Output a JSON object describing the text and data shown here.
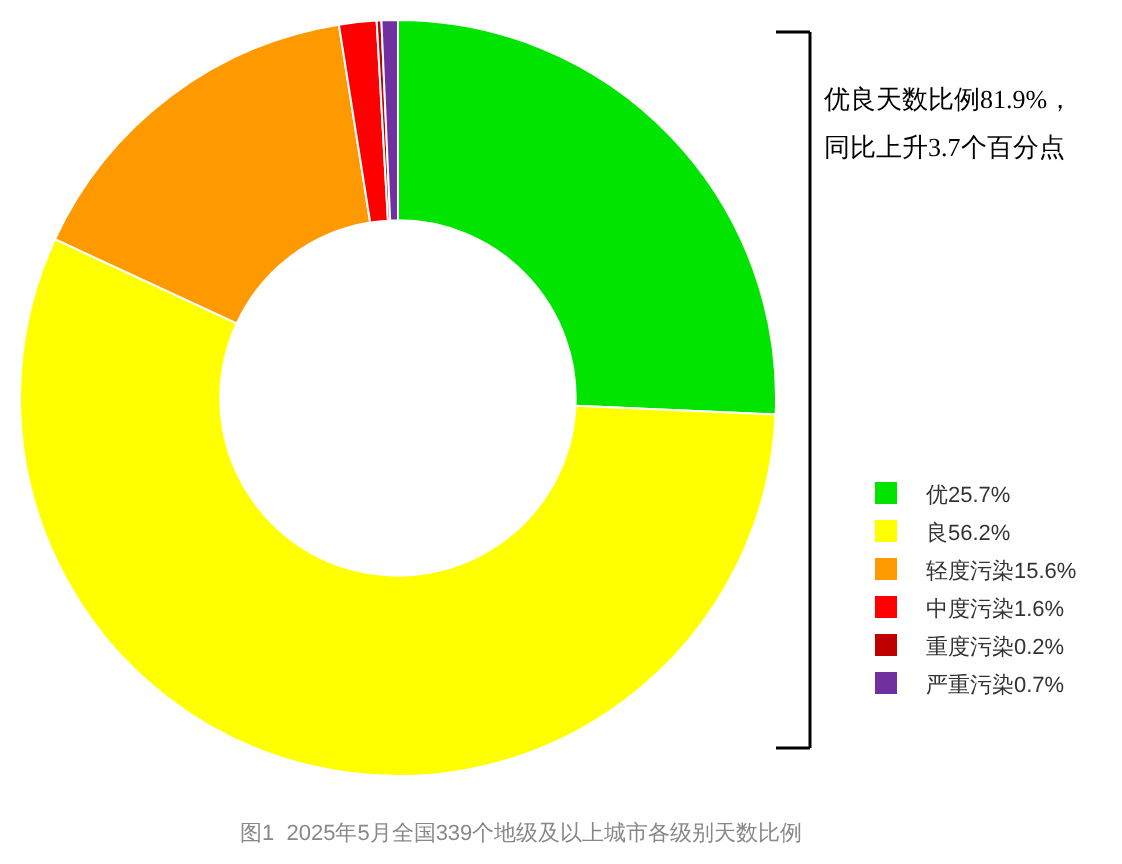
{
  "chart_data": {
    "type": "donut",
    "categories": [
      "优",
      "良",
      "轻度污染",
      "中度污染",
      "重度污染",
      "严重污染"
    ],
    "values": [
      25.7,
      56.2,
      15.6,
      1.6,
      0.2,
      0.7
    ],
    "value_labels": [
      "25.7%",
      "56.2%",
      "15.6%",
      "1.6%",
      "0.2%",
      "0.7%"
    ],
    "colors": [
      "#00e400",
      "#ffff00",
      "#ff9900",
      "#ff0000",
      "#c00000",
      "#7030a0"
    ],
    "legend": "bottom right",
    "annotations": [
      "优良天数比例81.9%，",
      "同比上升3.7个百分点",
      "图1  2025年5月全国339个地级及以上城市各级别天数比例"
    ]
  }
}
